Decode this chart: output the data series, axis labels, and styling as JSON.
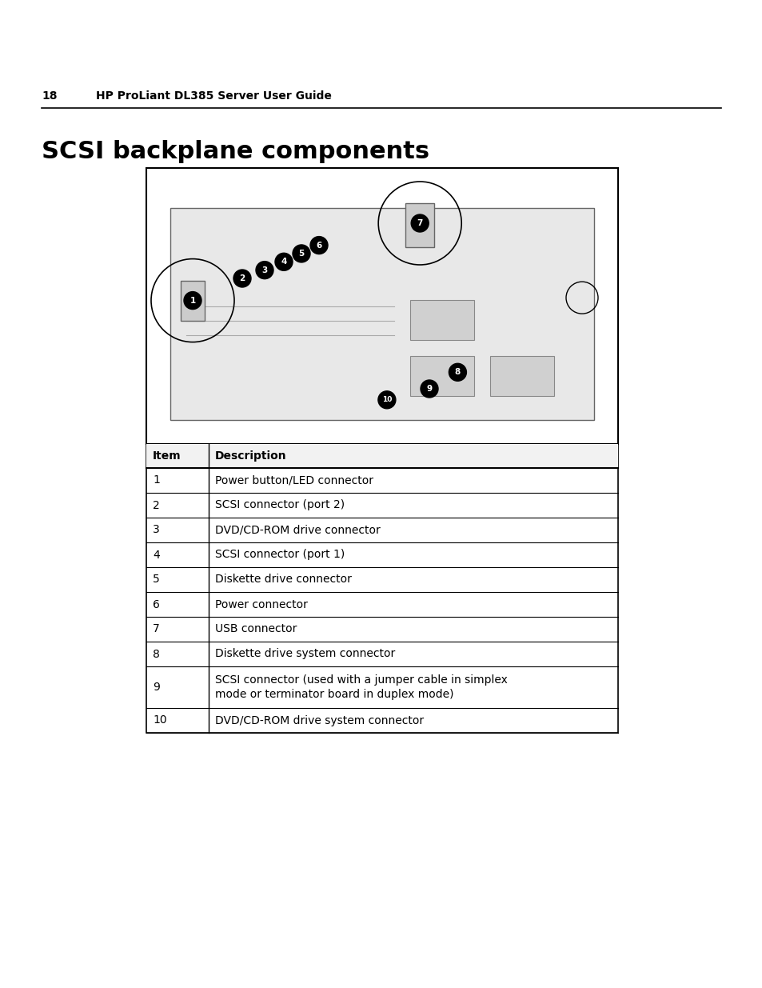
{
  "page_number": "18",
  "header_text": "HP ProLiant DL385 Server User Guide",
  "title": "SCSI backplane components",
  "bg_color": "#ffffff",
  "table_items": [
    {
      "item": "1",
      "description": "Power button/LED connector"
    },
    {
      "item": "2",
      "description": "SCSI connector (port 2)"
    },
    {
      "item": "3",
      "description": "DVD/CD-ROM drive connector"
    },
    {
      "item": "4",
      "description": "SCSI connector (port 1)"
    },
    {
      "item": "5",
      "description": "Diskette drive connector"
    },
    {
      "item": "6",
      "description": "Power connector"
    },
    {
      "item": "7",
      "description": "USB connector"
    },
    {
      "item": "8",
      "description": "Diskette drive system connector"
    },
    {
      "item": "9",
      "description": "SCSI connector (used with a jumper cable in simplex\nmode or terminator board in duplex mode)"
    },
    {
      "item": "10",
      "description": "DVD/CD-ROM drive system connector"
    }
  ],
  "header_col1": "Item",
  "header_col2": "Description",
  "text_color": "#000000"
}
